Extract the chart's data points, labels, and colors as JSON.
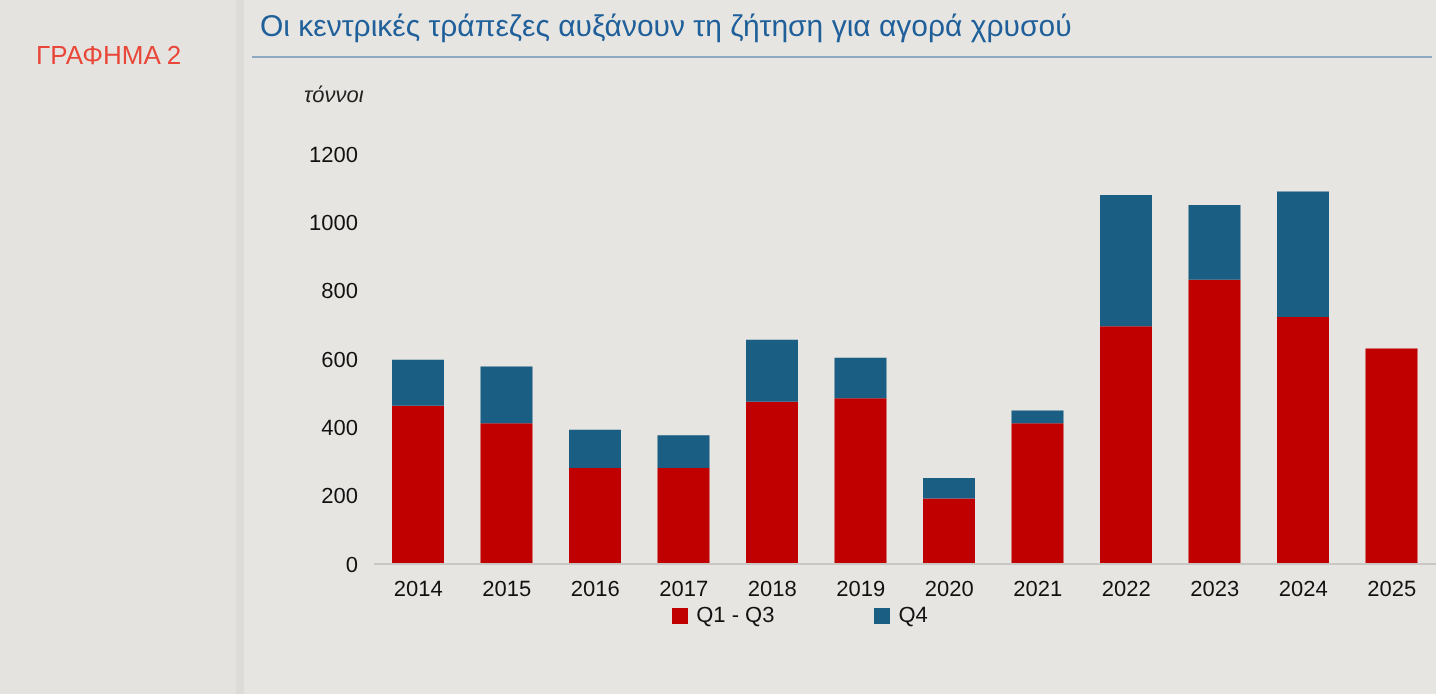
{
  "chart_data": {
    "type": "bar",
    "title": "Οι κεντρικές τράπεζες αυξάνουν τη ζήτηση για αγορά χρυσού",
    "ylabel": "τόννοι",
    "annotations": [
      "ΓΡΑΦΗΜΑ 2"
    ],
    "categories": [
      "2014",
      "2015",
      "2016",
      "2017",
      "2018",
      "2019",
      "2020",
      "2021",
      "2022",
      "2023",
      "2024",
      "2025"
    ],
    "series": [
      {
        "name": "Q1 - Q3",
        "color": "#c00000",
        "values": [
          463,
          412,
          281,
          281,
          475,
          485,
          192,
          412,
          696,
          832,
          723,
          631
        ]
      },
      {
        "name": "Q4",
        "color": "#1b5e84",
        "values": [
          135,
          166,
          112,
          96,
          181,
          119,
          60,
          37,
          384,
          219,
          367,
          null
        ]
      }
    ],
    "stacked": true,
    "ylim": [
      0,
      1200
    ],
    "yticks": [
      0,
      200,
      400,
      600,
      800,
      1000,
      1200
    ],
    "legend": "bottom"
  }
}
